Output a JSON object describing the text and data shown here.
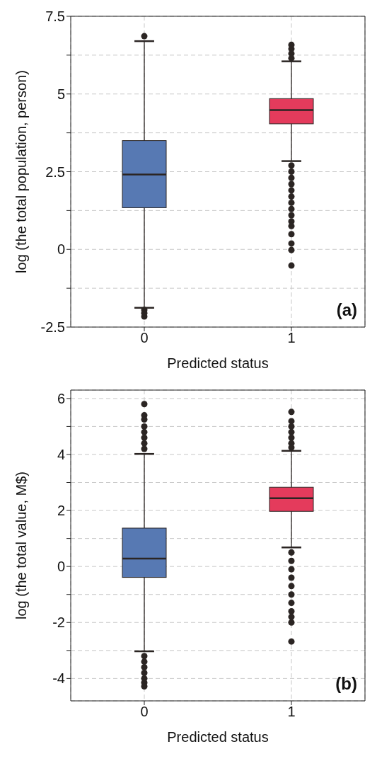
{
  "chart_data": [
    {
      "type": "box",
      "categories": [
        "0",
        "1"
      ],
      "xlabel": "Predicted status",
      "ylabel": "log (the total population, person)",
      "colors": [
        "#5779b3",
        "#e43b5c"
      ],
      "ylim": [
        -2.5,
        7.5
      ],
      "yticks": [
        -2.5,
        {
          "value": -1.25,
          "label": null
        },
        0,
        {
          "value": 1.25,
          "label": null
        },
        2.5,
        {
          "value": 3.75,
          "label": null
        },
        5,
        {
          "value": 6.25,
          "label": null
        },
        7.5
      ],
      "grid": true,
      "annotations": [
        "(a)"
      ],
      "boxes": [
        {
          "low": -1.88,
          "q1": 1.34,
          "median": 2.41,
          "q3": 3.5,
          "high": 6.7,
          "outliers": [
            6.86,
            -1.95,
            -2.05,
            -2.16
          ]
        },
        {
          "low": 2.84,
          "q1": 4.04,
          "median": 4.48,
          "q3": 4.85,
          "high": 6.05,
          "outliers": [
            6.15,
            6.3,
            6.45,
            6.58,
            2.7,
            2.5,
            2.3,
            2.1,
            1.9,
            1.7,
            1.5,
            1.3,
            1.1,
            0.9,
            0.75,
            0.49,
            0.19,
            -0.02,
            -0.52
          ]
        }
      ]
    },
    {
      "type": "box",
      "categories": [
        "0",
        "1"
      ],
      "xlabel": "Predicted status",
      "ylabel": "log (the total value, M$)",
      "colors": [
        "#5779b3",
        "#e43b5c"
      ],
      "ylim": [
        -4.8,
        6.3
      ],
      "yticks": [
        -4,
        {
          "value": -3,
          "label": null
        },
        -2,
        {
          "value": -1,
          "label": null
        },
        0,
        {
          "value": 1,
          "label": null
        },
        2,
        {
          "value": 3,
          "label": null
        },
        4,
        {
          "value": 5,
          "label": null
        },
        6
      ],
      "grid": true,
      "annotations": [
        "(b)"
      ],
      "boxes": [
        {
          "low": -3.03,
          "q1": -0.39,
          "median": 0.28,
          "q3": 1.37,
          "high": 4.02,
          "outliers": [
            5.8,
            5.4,
            5.25,
            5.0,
            4.8,
            4.6,
            4.4,
            4.2,
            -3.2,
            -3.4,
            -3.6,
            -3.8,
            -4.0,
            -4.15,
            -4.28
          ]
        },
        {
          "low": 0.68,
          "q1": 1.97,
          "median": 2.44,
          "q3": 2.83,
          "high": 4.13,
          "outliers": [
            5.52,
            5.19,
            5.0,
            4.8,
            4.6,
            4.4,
            4.25,
            0.5,
            0.2,
            -0.1,
            -0.4,
            -0.7,
            -1.0,
            -1.3,
            -1.6,
            -1.8,
            -2.0,
            -2.68
          ]
        }
      ]
    }
  ]
}
